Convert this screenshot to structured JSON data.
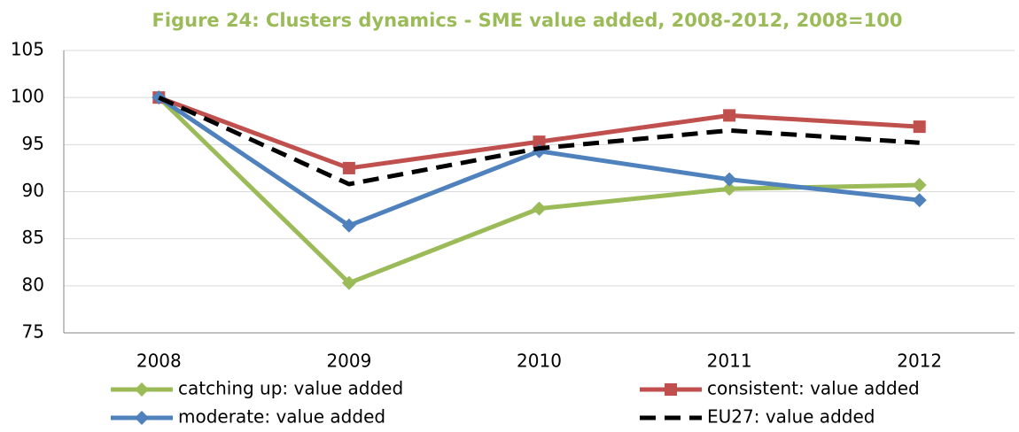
{
  "chart_data": {
    "type": "line",
    "title": "Figure 24: Clusters dynamics - SME value added, 2008-2012, 2008=100",
    "categories": [
      "2008",
      "2009",
      "2010",
      "2011",
      "2012"
    ],
    "series": [
      {
        "name": "catching up: value added",
        "color": "#9bbb59",
        "marker": "diamond",
        "values": [
          100,
          80.3,
          88.2,
          90.3,
          90.7
        ]
      },
      {
        "name": "consistent: value added",
        "color": "#c0504d",
        "marker": "square",
        "values": [
          100,
          92.5,
          95.3,
          98.1,
          96.9
        ]
      },
      {
        "name": "moderate: value added",
        "color": "#4f81bd",
        "marker": "diamond",
        "values": [
          100,
          86.4,
          94.3,
          91.3,
          89.1
        ]
      },
      {
        "name": "EU27: value added",
        "color": "#000000",
        "marker": "none",
        "dashed": true,
        "values": [
          100,
          90.8,
          94.6,
          96.5,
          95.2
        ]
      }
    ],
    "ylim": [
      75,
      105
    ],
    "yticks": [
      75,
      80,
      85,
      90,
      95,
      100,
      105
    ],
    "grid": true
  }
}
